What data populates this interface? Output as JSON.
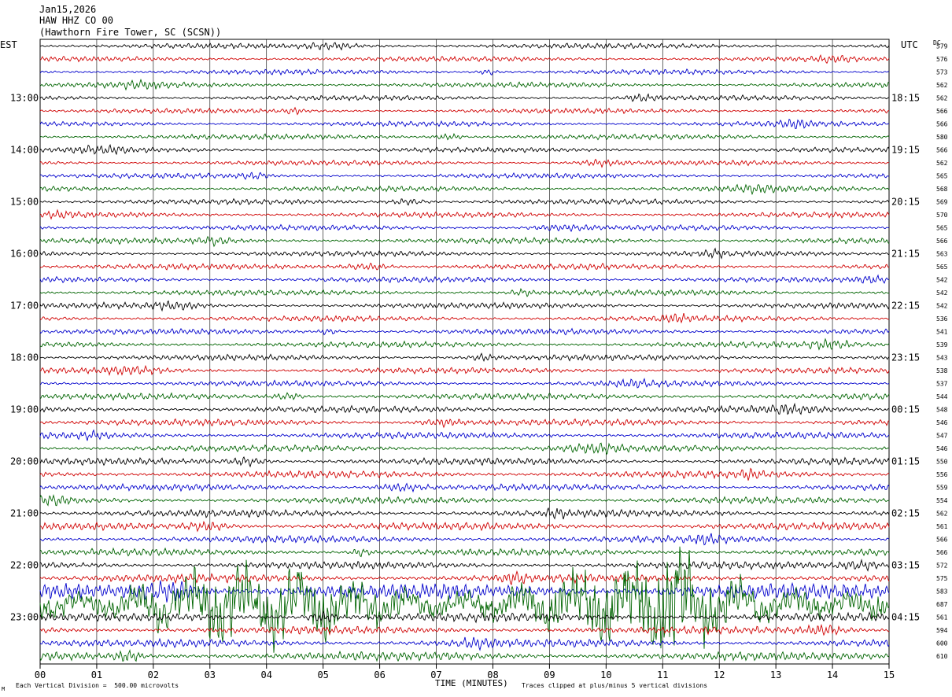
{
  "header": {
    "date": "Jan15,2026",
    "station": "HAW HHZ CO 00",
    "location": "(Hawthorn Fire Tower, SC (SCSN))"
  },
  "chart_data": {
    "type": "line",
    "left_axis_title": "EST",
    "right_axis_title": "UTC",
    "dc_column_title": "DC",
    "x_axis_title": "TIME (MINUTES)",
    "x_tick_labels": [
      "00",
      "01",
      "02",
      "03",
      "04",
      "05",
      "06",
      "07",
      "08",
      "09",
      "10",
      "11",
      "12",
      "13",
      "14",
      "15"
    ],
    "xlim": [
      0,
      15
    ],
    "left_hour_labels": [
      "13:00",
      "14:00",
      "15:00",
      "16:00",
      "17:00",
      "18:00",
      "19:00",
      "20:00",
      "21:00",
      "22:00",
      "23:00"
    ],
    "right_hour_labels": [
      "18:15",
      "19:15",
      "20:15",
      "21:15",
      "22:15",
      "23:15",
      "00:15",
      "01:15",
      "02:15",
      "03:15",
      "04:15"
    ],
    "trace_colors": [
      "#000000",
      "#d00000",
      "#0000cc",
      "#006400"
    ],
    "dc_offsets": [
      579,
      576,
      573,
      562,
      562,
      566,
      566,
      580,
      566,
      562,
      565,
      568,
      569,
      570,
      565,
      566,
      563,
      565,
      542,
      542,
      542,
      536,
      541,
      539,
      543,
      538,
      537,
      544,
      548,
      546,
      547,
      546,
      550,
      556,
      559,
      554,
      562,
      561,
      566,
      566,
      572,
      575,
      583,
      687,
      561,
      594,
      600,
      610
    ],
    "trace_amplitude_divisions": [
      0.28,
      0.26,
      0.26,
      0.28,
      0.26,
      0.26,
      0.26,
      0.28,
      0.26,
      0.26,
      0.26,
      0.28,
      0.28,
      0.28,
      0.28,
      0.3,
      0.28,
      0.3,
      0.28,
      0.3,
      0.3,
      0.3,
      0.3,
      0.3,
      0.3,
      0.3,
      0.3,
      0.32,
      0.34,
      0.34,
      0.34,
      0.34,
      0.36,
      0.36,
      0.34,
      0.34,
      0.38,
      0.38,
      0.36,
      0.36,
      0.38,
      0.42,
      0.8,
      2.6,
      0.45,
      0.4,
      0.4,
      0.45
    ],
    "scale_note": "Each Vertical Division =  500.00 microvolts",
    "clip_note": "Traces clipped at plus/minus 5 vertical divisions",
    "corner_mark": "M"
  }
}
